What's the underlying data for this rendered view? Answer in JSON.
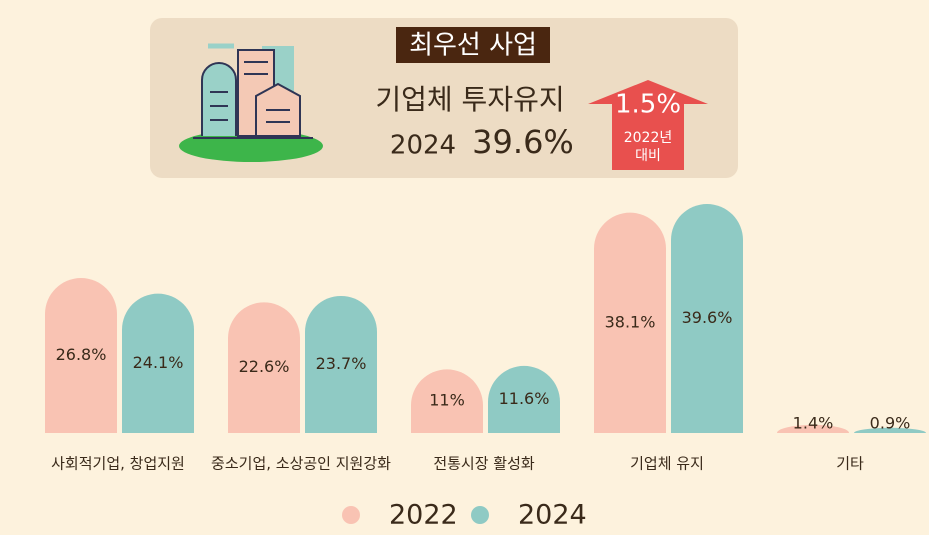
{
  "header": {
    "badge": "최우선 사업",
    "title": "기업체 투자유지",
    "year": "2024",
    "value": "39.6%",
    "change": "1.5%",
    "compare_year": "2022년",
    "compare_word": "대비"
  },
  "chart_data": {
    "type": "bar",
    "categories": [
      "사회적기업, 창업지원",
      "중소기업, 소상공인 지원강화",
      "전통시장 활성화",
      "기업체 유지",
      "기타"
    ],
    "series": [
      {
        "name": "2022",
        "color": "#f9c3b3",
        "values": [
          26.8,
          22.6,
          11,
          38.1,
          1.4
        ],
        "value_labels": [
          "26.8%",
          "22.6%",
          "11%",
          "38.1%",
          "1.4%"
        ]
      },
      {
        "name": "2024",
        "color": "#8fcac4",
        "values": [
          24.1,
          23.7,
          11.6,
          39.6,
          0.9
        ],
        "value_labels": [
          "24.1%",
          "23.7%",
          "11.6%",
          "39.6%",
          "0.9%"
        ]
      }
    ]
  }
}
